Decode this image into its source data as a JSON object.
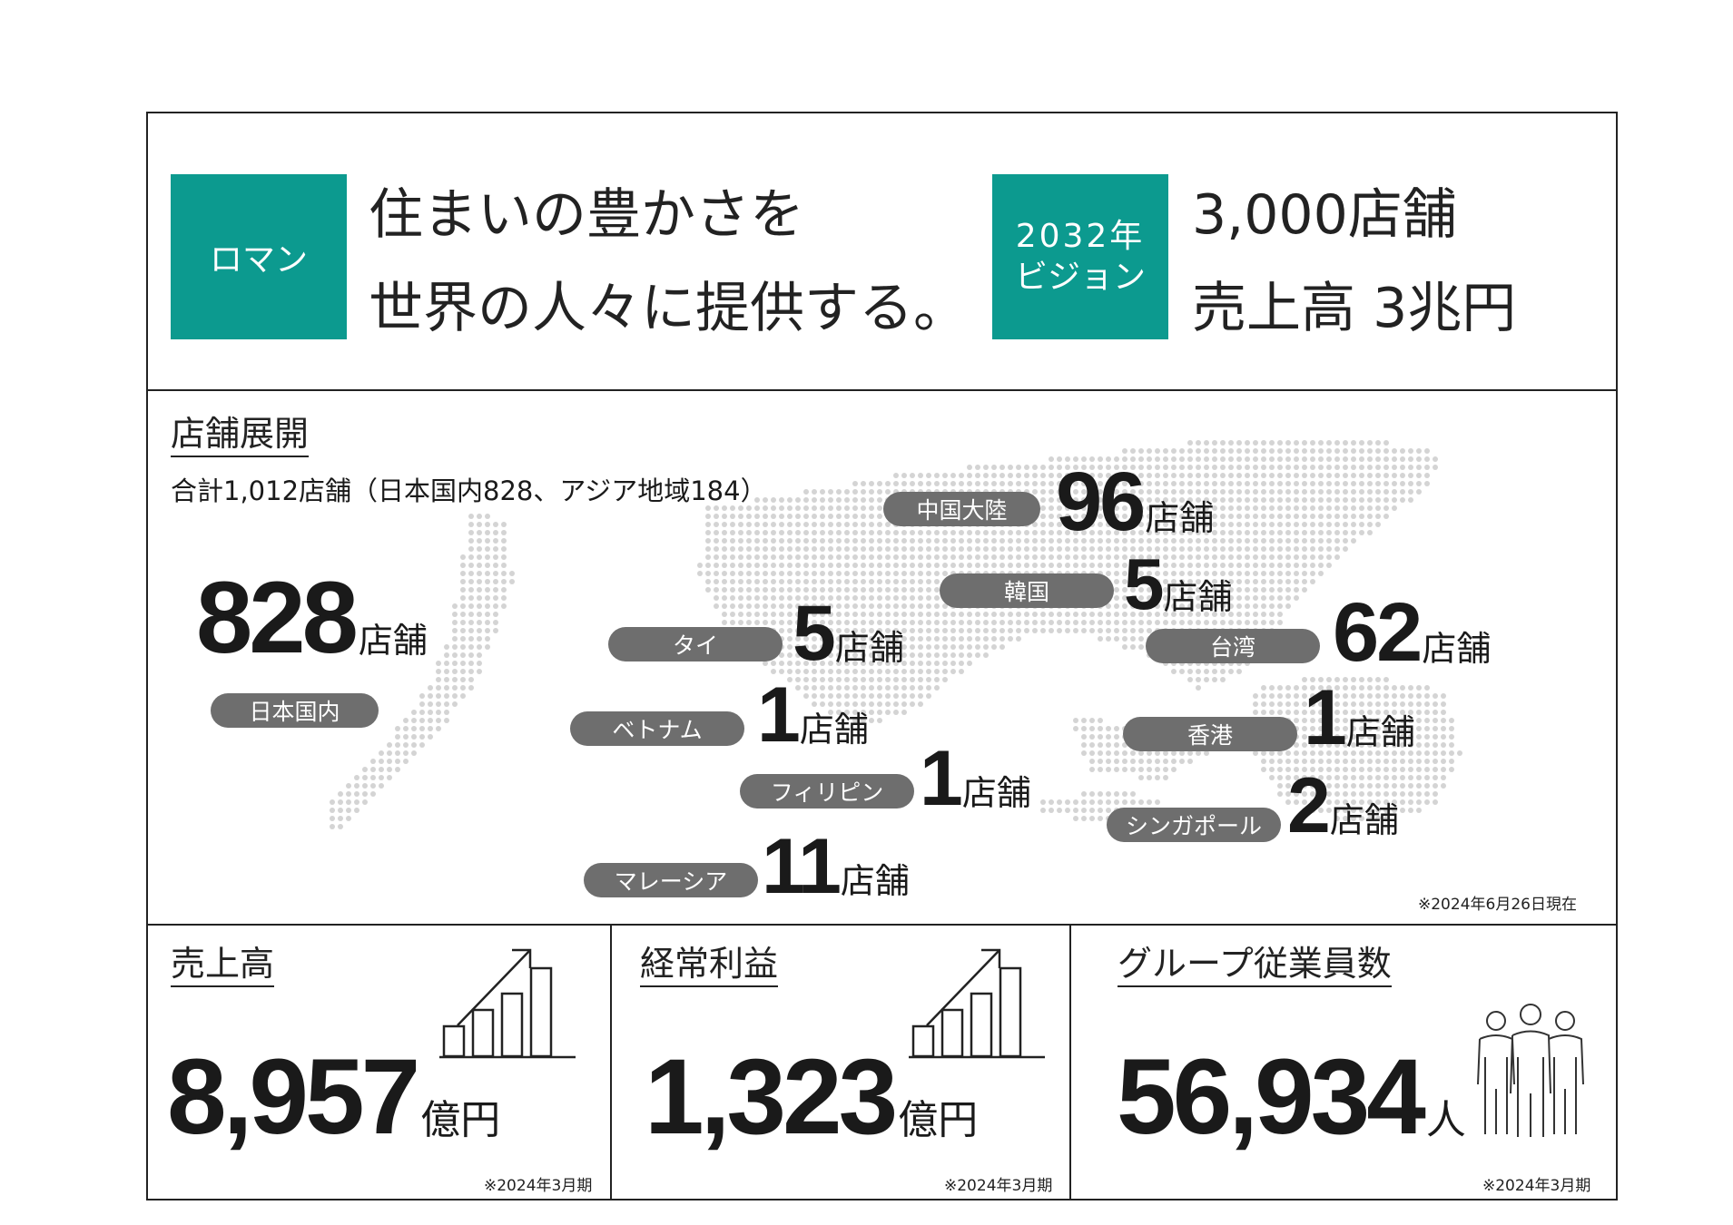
{
  "header": {
    "roman_badge": "ロマン",
    "roman_line1": "住まいの豊かさを",
    "roman_line2": "世界の人々に提供する。",
    "vision_badge_line1": "2032年",
    "vision_badge_line2": "ビジョン",
    "vision_line1": "3,000店舗",
    "vision_line2": "売上高 3兆円"
  },
  "stores": {
    "title": "店舗展開",
    "subtitle": "合計1,012店舗（日本国内828、アジア地域184）",
    "unit": "店舗",
    "note": "※2024年6月26日現在",
    "japan": {
      "label": "日本国内",
      "count": "828"
    },
    "regions": [
      {
        "label": "中国大陸",
        "count": "96"
      },
      {
        "label": "韓国",
        "count": "5"
      },
      {
        "label": "台湾",
        "count": "62"
      },
      {
        "label": "タイ",
        "count": "5"
      },
      {
        "label": "ベトナム",
        "count": "1"
      },
      {
        "label": "香港",
        "count": "1"
      },
      {
        "label": "フィリピン",
        "count": "1"
      },
      {
        "label": "シンガポール",
        "count": "2"
      },
      {
        "label": "マレーシア",
        "count": "11"
      }
    ]
  },
  "kpis": [
    {
      "title": "売上高",
      "value": "8,957",
      "unit": "億円",
      "note": "※2024年3月期",
      "icon": "growth-chart-icon"
    },
    {
      "title": "経常利益",
      "value": "1,323",
      "unit": "億円",
      "note": "※2024年3月期",
      "icon": "growth-chart-icon"
    },
    {
      "title": "グループ従業員数",
      "value": "56,934",
      "unit": "人",
      "note": "※2024年3月期",
      "icon": "people-group-icon"
    }
  ],
  "colors": {
    "accent": "#0c9a8f",
    "pill": "#6e6e6e",
    "map_dots": "#d4d4d4"
  }
}
